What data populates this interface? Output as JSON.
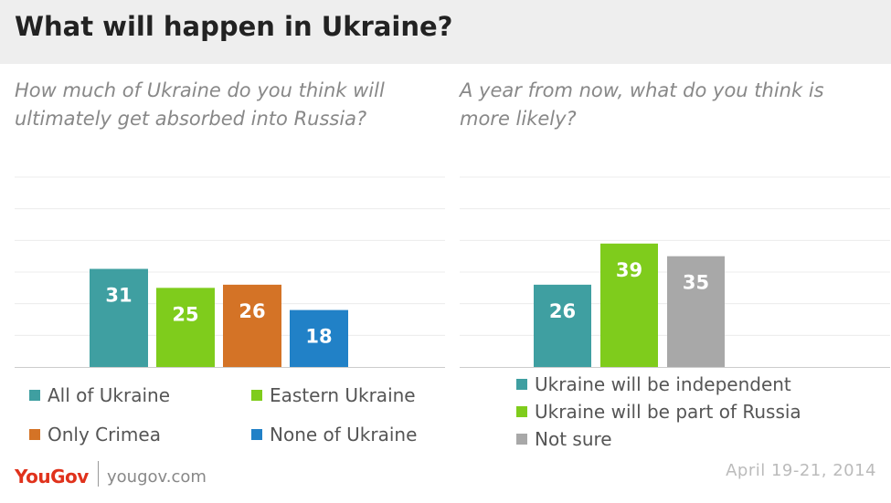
{
  "header": {
    "title": "What will happen in Ukraine?"
  },
  "chart_data": [
    {
      "type": "bar",
      "title": "How much of Ukraine do you think will ultimately get absorbed into Russia?",
      "categories": [
        "All of Ukraine",
        "Eastern Ukraine",
        "Only Crimea",
        "None of Ukraine"
      ],
      "values": [
        31,
        25,
        26,
        18
      ],
      "colors": [
        "#3f9fa1",
        "#7fcc1c",
        "#d47326",
        "#2181c7"
      ],
      "ylim": [
        0,
        60
      ],
      "grid": true,
      "data_labels": true
    },
    {
      "type": "bar",
      "title": "A year from now, what do you think is more likely?",
      "categories": [
        "Ukraine will be independent",
        "Ukraine will be part of Russia",
        "Not sure"
      ],
      "values": [
        26,
        39,
        35
      ],
      "colors": [
        "#3f9fa1",
        "#7fcc1c",
        "#a8a8a8"
      ],
      "ylim": [
        0,
        60
      ],
      "grid": true,
      "data_labels": true
    }
  ],
  "footer": {
    "logo": "YouGov",
    "url": "yougov.com",
    "date": "April 19-21, 2014"
  }
}
